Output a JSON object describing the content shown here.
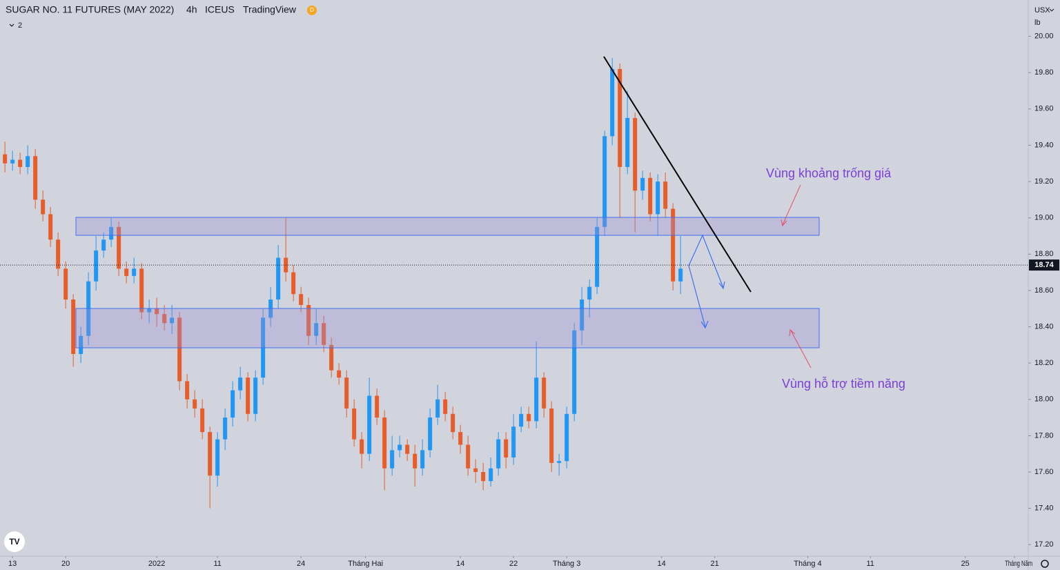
{
  "chart_data": {
    "type": "candlestick",
    "title": "SUGAR NO. 11 FUTURES (MAY 2022)",
    "interval": "4h",
    "exchange": "ICEUS",
    "source": "TradingView",
    "badge": "D",
    "indicator_count": "2",
    "currency": "USX",
    "unit": "lb",
    "annotations": [
      "Vùng khoảng trống giá",
      "Vùng hỗ trợ tiềm năng"
    ],
    "last_price": {
      "value": 18.74,
      "label": "18.74"
    },
    "up_color": "#2196f3",
    "down_color": "#e65d2b",
    "x": [
      -2,
      0,
      2,
      4,
      6,
      8,
      10,
      12,
      14,
      16,
      18,
      20,
      22,
      24,
      26,
      28,
      30,
      32,
      34,
      36,
      38,
      40,
      42,
      44,
      46,
      48,
      50,
      52,
      54,
      56,
      58,
      60,
      62,
      64,
      66,
      68,
      70,
      72,
      74,
      76,
      78,
      80,
      82,
      84,
      86,
      88,
      90,
      92,
      94,
      96,
      98,
      100,
      102,
      104,
      106,
      108,
      110,
      112,
      114,
      116,
      118,
      120,
      122,
      124,
      126,
      128,
      130,
      132,
      134,
      136,
      138,
      140,
      142,
      144,
      146,
      148,
      150,
      152,
      154,
      156,
      158,
      160,
      162,
      164,
      166,
      168,
      170,
      172,
      174,
      176
    ],
    "open": [
      19.35,
      19.3,
      19.32,
      19.28,
      19.34,
      19.1,
      19.02,
      18.88,
      18.72,
      18.55,
      18.25,
      18.35,
      18.65,
      18.82,
      18.88,
      18.95,
      18.72,
      18.68,
      18.72,
      18.48,
      18.5,
      18.47,
      18.42,
      18.45,
      18.1,
      18.0,
      17.95,
      17.82,
      17.58,
      17.78,
      17.9,
      18.05,
      18.12,
      17.92,
      18.12,
      18.45,
      18.55,
      18.78,
      18.7,
      18.58,
      18.52,
      18.35,
      18.42,
      18.3,
      18.16,
      18.12,
      17.95,
      17.78,
      17.7,
      18.02,
      17.9,
      17.62,
      17.72,
      17.75,
      17.7,
      17.62,
      17.72,
      17.9,
      18.0,
      17.92,
      17.82,
      17.75,
      17.62,
      17.6,
      17.55,
      17.62,
      17.78,
      17.68,
      17.85,
      17.92,
      17.88,
      18.12,
      17.95,
      17.65,
      17.66,
      17.92,
      18.38,
      18.55,
      18.62,
      18.95,
      19.45,
      19.82,
      19.28,
      19.55,
      19.15,
      19.22,
      19.02,
      19.2,
      19.05,
      18.65
    ],
    "high": [
      19.42,
      19.37,
      19.36,
      19.4,
      19.38,
      19.15,
      19.06,
      18.92,
      18.76,
      18.58,
      18.4,
      18.7,
      18.9,
      18.92,
      19.0,
      18.98,
      18.76,
      18.78,
      18.75,
      18.55,
      18.56,
      18.52,
      18.52,
      18.48,
      18.14,
      18.05,
      18.0,
      17.85,
      17.82,
      17.95,
      18.1,
      18.18,
      18.15,
      18.16,
      18.5,
      18.62,
      18.85,
      19.0,
      18.74,
      18.62,
      18.56,
      18.5,
      18.46,
      18.34,
      18.2,
      18.16,
      18.0,
      17.82,
      18.12,
      18.06,
      17.94,
      17.8,
      17.8,
      17.78,
      17.75,
      17.78,
      17.95,
      18.08,
      18.04,
      17.96,
      17.86,
      17.8,
      17.67,
      17.65,
      17.68,
      17.82,
      17.82,
      17.92,
      17.96,
      17.96,
      18.32,
      18.15,
      17.99,
      17.7,
      17.96,
      18.42,
      18.62,
      18.66,
      19.0,
      19.48,
      19.88,
      19.85,
      19.7,
      19.58,
      19.26,
      19.25,
      19.24,
      19.25,
      19.08,
      18.9
    ],
    "low": [
      19.25,
      19.26,
      19.24,
      19.24,
      19.05,
      18.98,
      18.84,
      18.68,
      18.5,
      18.18,
      18.2,
      18.3,
      18.6,
      18.78,
      18.84,
      18.68,
      18.64,
      18.64,
      18.44,
      18.42,
      18.4,
      18.38,
      18.36,
      18.05,
      17.95,
      17.9,
      17.78,
      17.4,
      17.52,
      17.72,
      17.85,
      18.0,
      17.88,
      17.88,
      18.08,
      18.4,
      18.5,
      18.65,
      18.54,
      18.48,
      18.3,
      18.3,
      18.26,
      18.12,
      18.08,
      17.9,
      17.74,
      17.62,
      17.66,
      17.86,
      17.5,
      17.58,
      17.68,
      17.66,
      17.52,
      17.58,
      17.68,
      17.86,
      17.88,
      17.78,
      17.7,
      17.58,
      17.54,
      17.5,
      17.52,
      17.58,
      17.62,
      17.64,
      17.82,
      17.84,
      17.84,
      17.9,
      17.6,
      17.58,
      17.62,
      17.88,
      18.3,
      18.45,
      18.58,
      18.9,
      19.4,
      19.0,
      19.24,
      18.92,
      19.1,
      18.98,
      18.9,
      19.0,
      18.6,
      18.58
    ],
    "close": [
      19.3,
      19.32,
      19.28,
      19.34,
      19.1,
      19.02,
      18.88,
      18.72,
      18.55,
      18.25,
      18.35,
      18.65,
      18.82,
      18.88,
      18.95,
      18.72,
      18.68,
      18.72,
      18.48,
      18.5,
      18.47,
      18.42,
      18.45,
      18.1,
      18.0,
      17.95,
      17.82,
      17.58,
      17.78,
      17.9,
      18.05,
      18.12,
      17.92,
      18.12,
      18.45,
      18.55,
      18.78,
      18.7,
      18.58,
      18.52,
      18.35,
      18.42,
      18.3,
      18.16,
      18.12,
      17.95,
      17.78,
      17.7,
      18.02,
      17.9,
      17.62,
      17.72,
      17.75,
      17.7,
      17.62,
      17.72,
      17.9,
      18.0,
      17.92,
      17.82,
      17.75,
      17.62,
      17.6,
      17.55,
      17.62,
      17.78,
      17.68,
      17.85,
      17.92,
      17.88,
      18.12,
      17.95,
      17.65,
      17.66,
      17.92,
      18.38,
      18.55,
      18.62,
      18.95,
      19.45,
      19.82,
      19.28,
      19.55,
      19.15,
      19.22,
      19.02,
      19.2,
      19.05,
      18.65,
      18.72
    ],
    "xlim": [
      -3.3,
      267.6
    ],
    "xticks": [
      {
        "value": 0,
        "label": "13"
      },
      {
        "value": 14,
        "label": "20"
      },
      {
        "value": 38,
        "label": "2022"
      },
      {
        "value": 54,
        "label": "11"
      },
      {
        "value": 76,
        "label": "24"
      },
      {
        "value": 93,
        "label": "Tháng Hai"
      },
      {
        "value": 118,
        "label": "14"
      },
      {
        "value": 132,
        "label": "22"
      },
      {
        "value": 146,
        "label": "Tháng 3"
      },
      {
        "value": 171,
        "label": "14"
      },
      {
        "value": 185,
        "label": "21"
      },
      {
        "value": 209.5,
        "label": "Tháng 4"
      },
      {
        "value": 226,
        "label": "11"
      },
      {
        "value": 251,
        "label": "25"
      },
      {
        "value": 264,
        "label": "Tháng Năm"
      }
    ],
    "ylim": [
      17.14,
      20.2
    ],
    "yticks": [
      {
        "value": 17.2,
        "label": "17.20"
      },
      {
        "value": 17.4,
        "label": "17.40"
      },
      {
        "value": 17.6,
        "label": "17.60"
      },
      {
        "value": 17.8,
        "label": "17.80"
      },
      {
        "value": 18,
        "label": "18.00"
      },
      {
        "value": 18.2,
        "label": "18.20"
      },
      {
        "value": 18.4,
        "label": "18.40"
      },
      {
        "value": 18.6,
        "label": "18.60"
      },
      {
        "value": 18.8,
        "label": "18.80"
      },
      {
        "value": 19,
        "label": "19.00"
      },
      {
        "value": 19.2,
        "label": "19.20"
      },
      {
        "value": 19.4,
        "label": "19.40"
      },
      {
        "value": 19.6,
        "label": "19.60"
      },
      {
        "value": 19.8,
        "label": "19.80"
      },
      {
        "value": 20,
        "label": "20.00"
      }
    ]
  }
}
